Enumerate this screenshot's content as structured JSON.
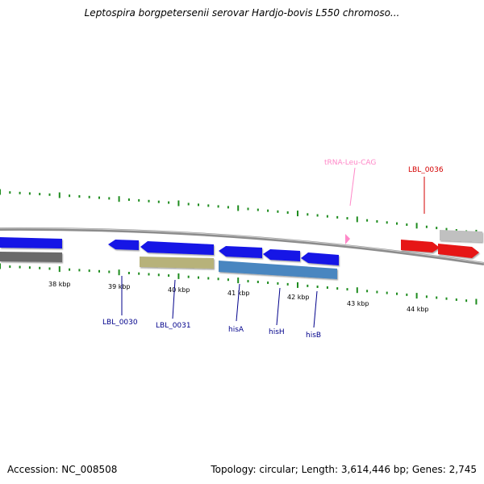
{
  "title": "Leptospira borgpetersenii serovar Hardjo-bovis L550 chromoso...",
  "footer": {
    "accession": "Accession: NC_008508",
    "topology": "Topology: circular; Length: 3,614,446 bp; Genes: 2,745"
  },
  "colors": {
    "backbone": "#8c8c8c",
    "tick": "#1e8c1e",
    "gene_blue": "#1212e6",
    "gene_red": "#e61212",
    "gene_olive": "#b7b27a",
    "gene_steel": "#4a86c0",
    "gene_dark_gray": "#6a6a6a",
    "gene_light_gray": "#c0c0c0",
    "trna_pink": "#ff88c8",
    "label_blue": "#00008b",
    "label_red": "#d40000",
    "label_pink": "#ff88c8"
  },
  "kbp_labels": [
    "38 kbp",
    "39 kbp",
    "40 kbp",
    "41 kbp",
    "42 kbp",
    "43 kbp",
    "44 kbp"
  ],
  "gene_labels": {
    "lbl_0030": "LBL_0030",
    "lbl_0031": "LBL_0031",
    "hisA": "hisA",
    "hisH": "hisH",
    "hisB": "hisB",
    "lbl_0036": "LBL_0036",
    "trna": "tRNA-Leu-CAG"
  }
}
